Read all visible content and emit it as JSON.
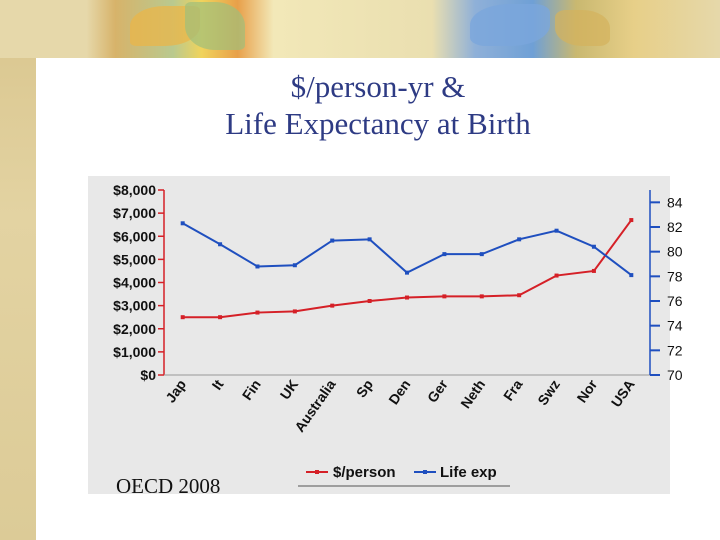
{
  "slide": {
    "title_line1": "$/person-yr &",
    "title_line2": "Life Expectancy at Birth",
    "source": "OECD 2008"
  },
  "colors": {
    "cost": "#d52027",
    "life": "#1f4fbf"
  },
  "chart_data": {
    "type": "line",
    "categories": [
      "Jap",
      "It",
      "Fin",
      "UK",
      "Australia",
      "Sp",
      "Den",
      "Ger",
      "Neth",
      "Fra",
      "Swz",
      "Nor",
      "USA"
    ],
    "series": [
      {
        "name": "$/person",
        "axis": "left",
        "values": [
          2500,
          2500,
          2700,
          2750,
          3000,
          3200,
          3350,
          3400,
          3400,
          3450,
          4300,
          4500,
          6700
        ]
      },
      {
        "name": "Life exp",
        "axis": "right",
        "values": [
          82.3,
          80.6,
          78.8,
          78.9,
          80.9,
          81.0,
          78.3,
          79.8,
          79.8,
          81.0,
          81.7,
          80.4,
          78.1
        ]
      }
    ],
    "y_left": {
      "ylim": [
        0,
        8000
      ],
      "tick_labels": [
        "$0",
        "$1,000",
        "$2,000",
        "$3,000",
        "$4,000",
        "$5,000",
        "$6,000",
        "$7,000",
        "$8,000"
      ]
    },
    "y_right": {
      "ylim": [
        70,
        85
      ],
      "tick_labels": [
        "70",
        "72",
        "74",
        "76",
        "78",
        "80",
        "82",
        "84"
      ]
    },
    "legend_placement": "bottom",
    "grid": false
  }
}
